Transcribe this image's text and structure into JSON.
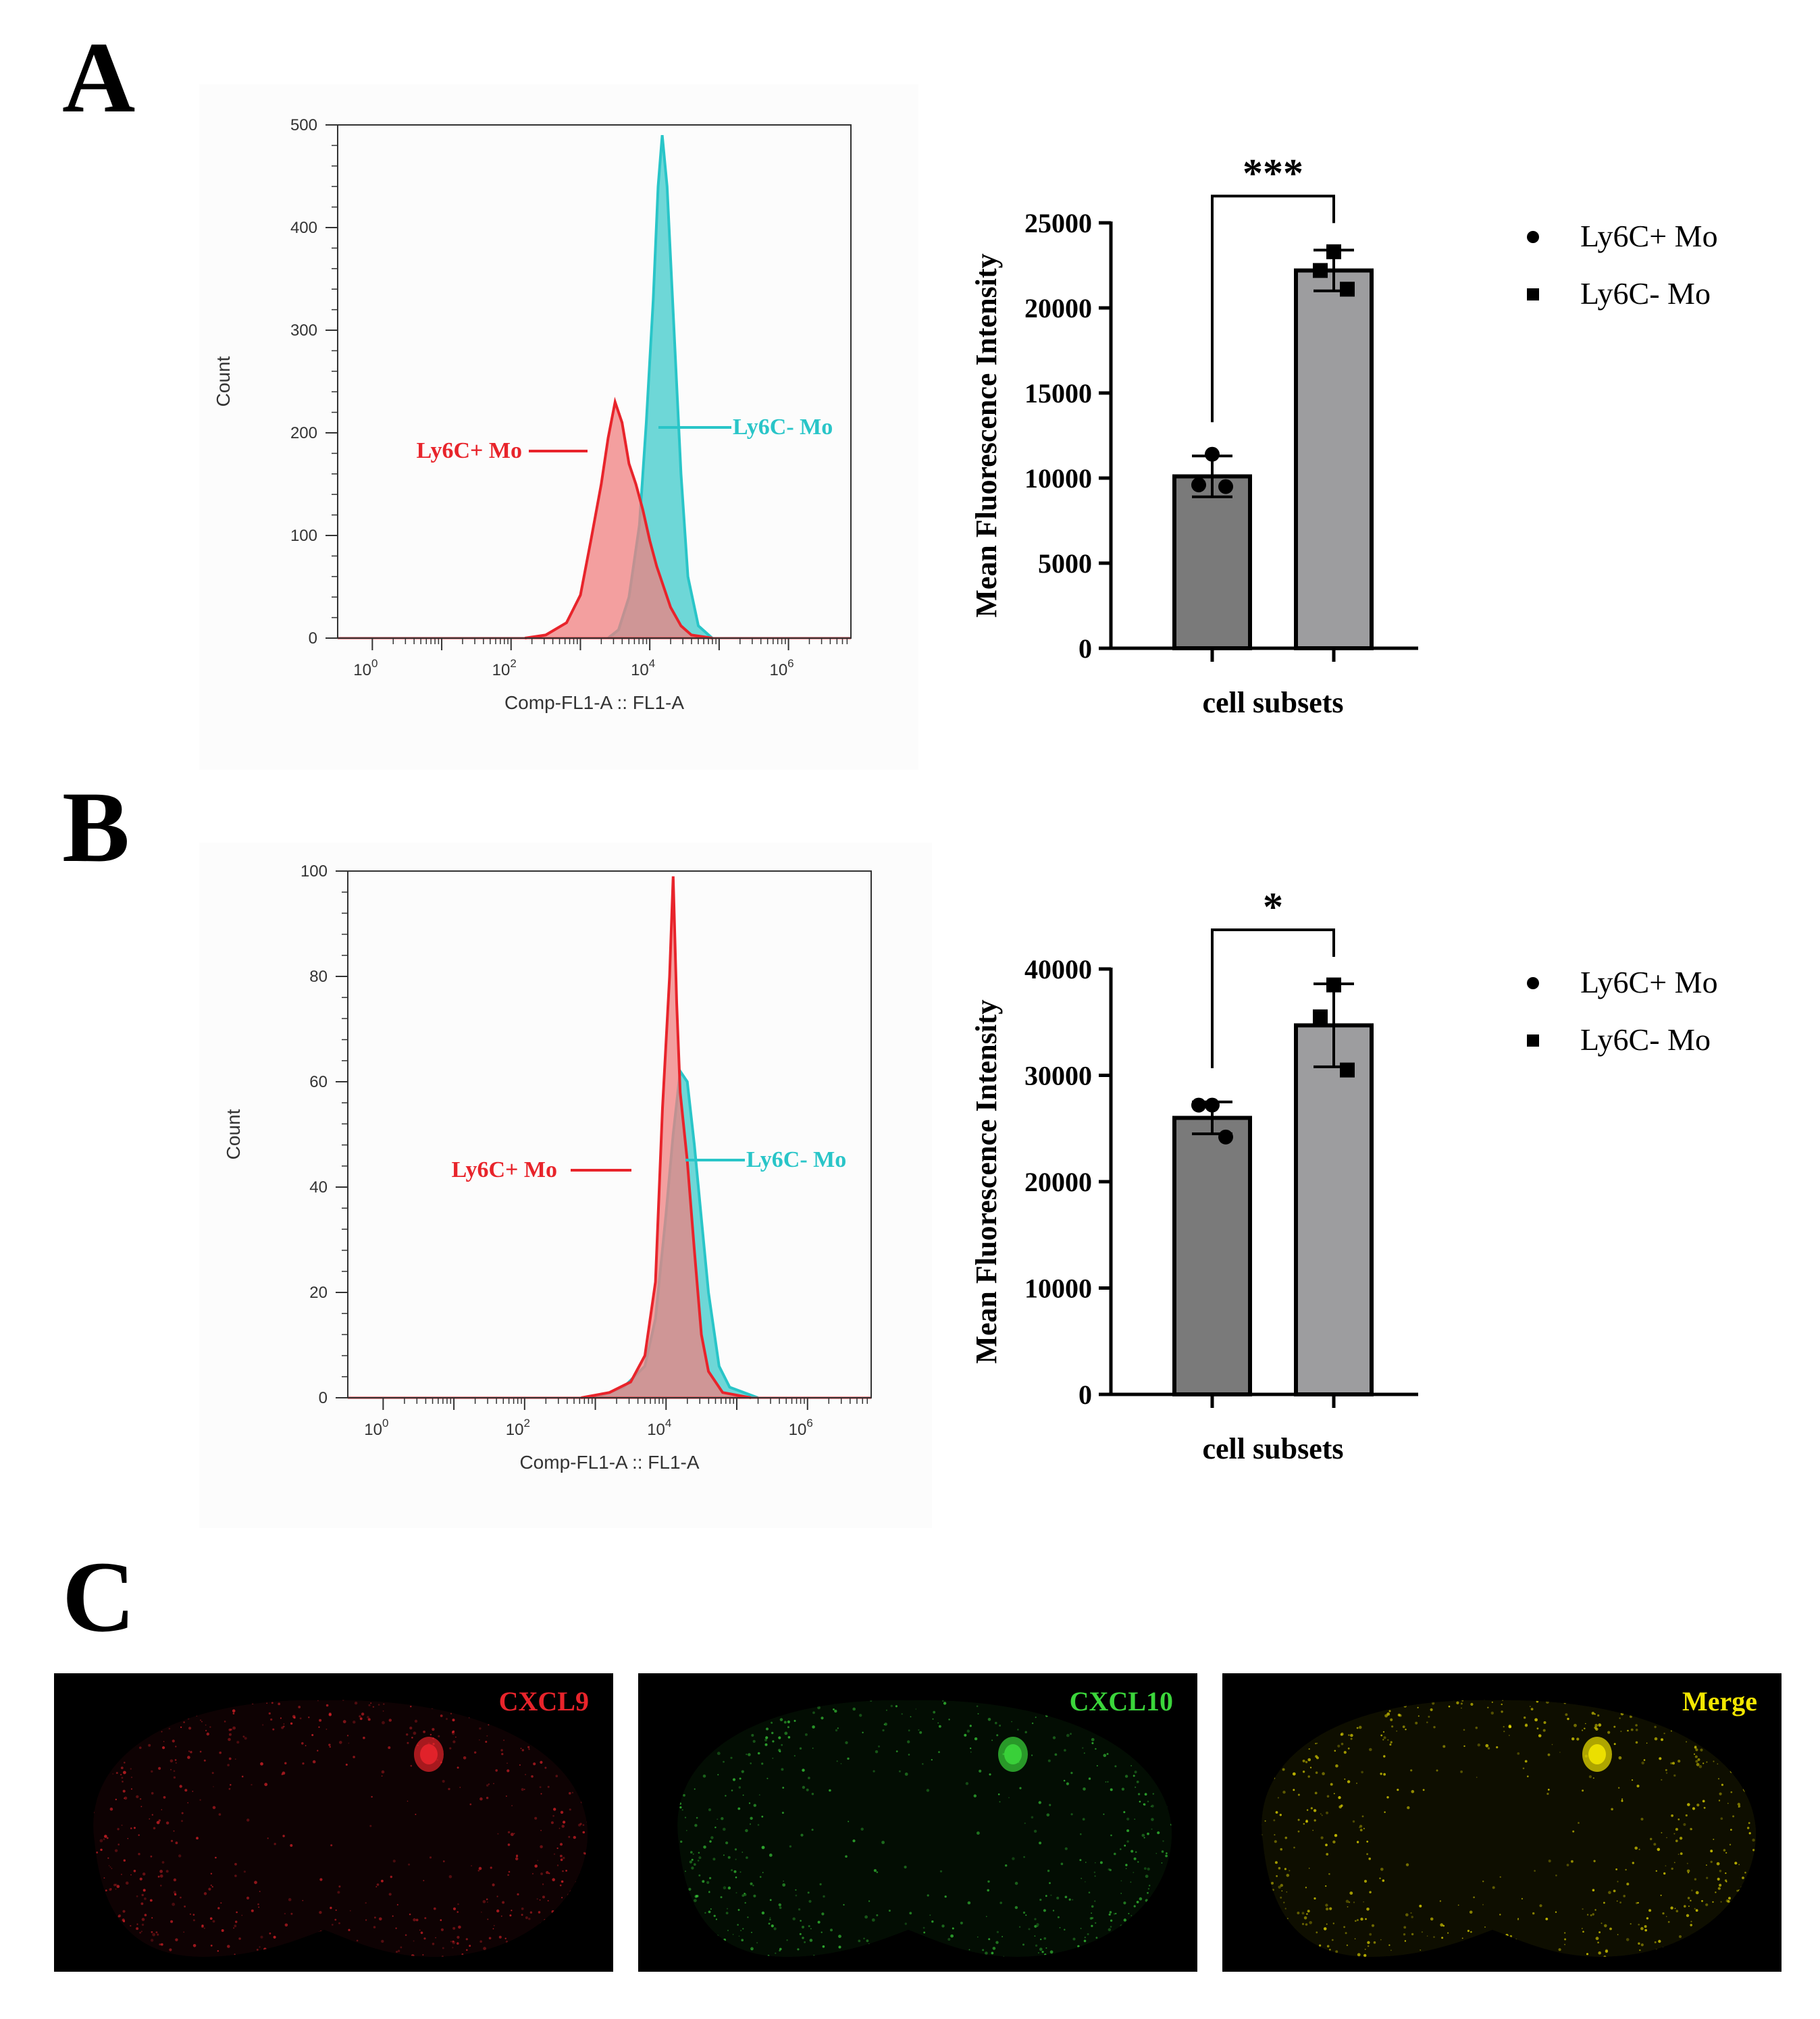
{
  "panels": {
    "A": "A",
    "B": "B",
    "C": "C"
  },
  "chart_data": [
    {
      "type": "area",
      "panel": "A",
      "xlabel": "Comp-FL1-A :: FL1-A",
      "ylabel": "Count",
      "x_scale": "log",
      "x_ticks": [
        "10^0",
        "10^2",
        "10^4",
        "10^6"
      ],
      "xlim_log10": [
        -0.5,
        6.9
      ],
      "ylim": [
        0,
        500
      ],
      "y_ticks": [
        0,
        100,
        200,
        300,
        400,
        500
      ],
      "series": [
        {
          "name": "Ly6C+ Mo",
          "color": "#e8242b",
          "fill": "#f08080",
          "x_log10": [
            2.2,
            2.5,
            2.8,
            3.0,
            3.15,
            3.3,
            3.4,
            3.5,
            3.6,
            3.7,
            3.8,
            3.9,
            4.0,
            4.1,
            4.2,
            4.3,
            4.45,
            4.6,
            4.9
          ],
          "y": [
            0,
            3,
            15,
            42,
            95,
            150,
            195,
            230,
            210,
            170,
            150,
            125,
            95,
            70,
            50,
            30,
            12,
            3,
            0
          ]
        },
        {
          "name": "Ly6C- Mo",
          "color": "#29c5c8",
          "fill": "#5ed3d3",
          "x_log10": [
            3.4,
            3.55,
            3.7,
            3.85,
            3.95,
            4.05,
            4.12,
            4.18,
            4.25,
            4.35,
            4.45,
            4.55,
            4.7,
            4.9
          ],
          "y": [
            0,
            8,
            40,
            110,
            210,
            330,
            440,
            490,
            440,
            300,
            160,
            60,
            12,
            0
          ]
        }
      ]
    },
    {
      "type": "bar",
      "panel": "A",
      "xlabel": "cell subsets",
      "ylabel": "Mean Fluorescence Intensity",
      "ylim": [
        0,
        25000
      ],
      "y_ticks": [
        0,
        5000,
        10000,
        15000,
        20000,
        25000
      ],
      "significance": "***",
      "series": [
        {
          "name": "Ly6C+ Mo",
          "marker": "circle",
          "color": "#7a7a7a",
          "mean": 10100,
          "error": 1200,
          "points": [
            11400,
            9600,
            9500
          ]
        },
        {
          "name": "Ly6C- Mo",
          "marker": "square",
          "color": "#9d9d9f",
          "mean": 22200,
          "error": 1200,
          "points": [
            23300,
            22200,
            21100
          ]
        }
      ]
    },
    {
      "type": "area",
      "panel": "B",
      "xlabel": "Comp-FL1-A :: FL1-A",
      "ylabel": "Count",
      "x_scale": "log",
      "x_ticks": [
        "10^0",
        "10^2",
        "10^4",
        "10^6"
      ],
      "xlim_log10": [
        -0.5,
        6.9
      ],
      "ylim": [
        0,
        100
      ],
      "y_ticks": [
        0,
        20,
        40,
        60,
        80,
        100
      ],
      "series": [
        {
          "name": "Ly6C+ Mo",
          "color": "#e8242b",
          "fill": "#f08080",
          "x_log10": [
            2.8,
            3.2,
            3.5,
            3.7,
            3.85,
            3.95,
            4.05,
            4.1,
            4.15,
            4.2,
            4.3,
            4.4,
            4.5,
            4.6,
            4.8,
            5.2
          ],
          "y": [
            0,
            1,
            3,
            8,
            22,
            55,
            80,
            99,
            75,
            58,
            45,
            28,
            12,
            5,
            1,
            0
          ]
        },
        {
          "name": "Ly6C- Mo",
          "color": "#29c5c8",
          "fill": "#5ed3d3",
          "x_log10": [
            3.0,
            3.4,
            3.7,
            3.85,
            4.0,
            4.1,
            4.2,
            4.3,
            4.4,
            4.5,
            4.6,
            4.75,
            4.9,
            5.3
          ],
          "y": [
            0,
            2,
            6,
            15,
            35,
            50,
            62,
            60,
            48,
            34,
            20,
            6,
            2,
            0
          ]
        }
      ]
    },
    {
      "type": "bar",
      "panel": "B",
      "xlabel": "cell subsets",
      "ylabel": "Mean Fluorescence Intensity",
      "ylim": [
        0,
        40000
      ],
      "y_ticks": [
        0,
        10000,
        20000,
        30000,
        40000
      ],
      "significance": "*",
      "series": [
        {
          "name": "Ly6C+ Mo",
          "marker": "circle",
          "color": "#7a7a7a",
          "mean": 26000,
          "error": 1500,
          "points": [
            27200,
            27200,
            24200
          ]
        },
        {
          "name": "Ly6C- Mo",
          "marker": "square",
          "color": "#9d9d9f",
          "mean": 34700,
          "error": 3900,
          "points": [
            38500,
            35500,
            30500
          ]
        }
      ]
    }
  ],
  "images": [
    {
      "label": "CXCL9",
      "color": "#e8242b"
    },
    {
      "label": "CXCL10",
      "color": "#3bd63b"
    },
    {
      "label": "Merge",
      "color": "#f2e600"
    }
  ]
}
